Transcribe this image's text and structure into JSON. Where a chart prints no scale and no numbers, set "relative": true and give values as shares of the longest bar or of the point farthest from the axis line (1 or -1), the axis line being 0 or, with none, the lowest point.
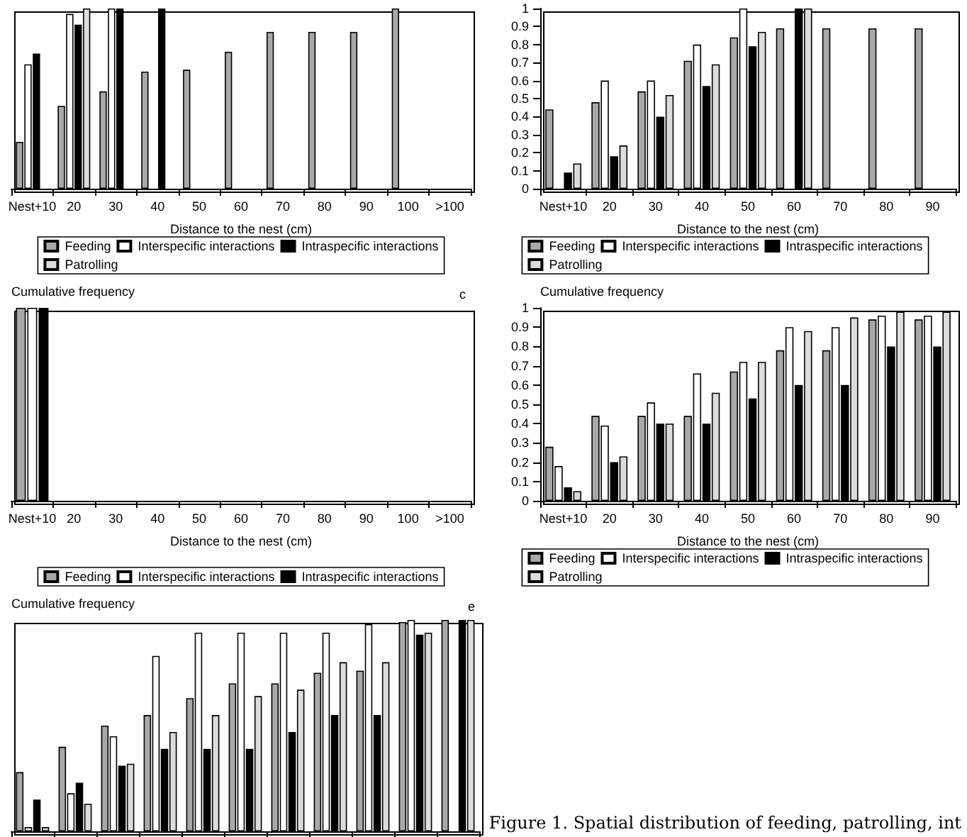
{
  "chart_data": [
    {
      "type": "bar",
      "relative": true,
      "xlabel": "Distance to the nest (cm)",
      "categories": [
        "Nest+10",
        "20",
        "30",
        "40",
        "50",
        "60",
        "70",
        "80",
        "90",
        "100",
        ">100"
      ],
      "legend": "bottom",
      "tick_labels": "x",
      "grid": false,
      "series": [
        {
          "name": "Feeding",
          "color": "#a8a8a8",
          "values": [
            0.26,
            0.46,
            0.54,
            0.65,
            0.66,
            0.76,
            0.87,
            0.87,
            0.87,
            1,
            null
          ]
        },
        {
          "name": "Interspecific interactions",
          "color": "#ffffff",
          "values": [
            0.69,
            0.97,
            1,
            null,
            null,
            null,
            null,
            null,
            null,
            null,
            null
          ]
        },
        {
          "name": "Intraspecific interactions",
          "color": "#000000",
          "values": [
            0.75,
            0.91,
            1,
            1,
            null,
            null,
            null,
            null,
            null,
            null,
            null
          ]
        },
        {
          "name": "Patrolling",
          "color": "#dcdcdc",
          "values": [
            null,
            1,
            null,
            null,
            null,
            null,
            null,
            null,
            null,
            null,
            null
          ]
        }
      ]
    },
    {
      "type": "bar",
      "xlabel": "Distance to the nest (cm)",
      "categories": [
        "Nest+10",
        "20",
        "30",
        "40",
        "50",
        "60",
        "70",
        "80",
        "90"
      ],
      "ylim": [
        0,
        1
      ],
      "yticks": [
        0,
        0.1,
        0.2,
        0.3,
        0.4,
        0.5,
        0.6,
        0.7,
        0.8,
        0.9,
        1
      ],
      "legend": "bottom",
      "grid": false,
      "series": [
        {
          "name": "Feeding",
          "color": "#a8a8a8",
          "values": [
            0.44,
            0.48,
            0.54,
            0.71,
            0.84,
            0.89,
            0.89,
            0.89,
            0.89
          ]
        },
        {
          "name": "Interspecific interactions",
          "color": "#ffffff",
          "values": [
            null,
            0.6,
            0.6,
            0.8,
            1,
            null,
            null,
            null,
            null
          ]
        },
        {
          "name": "Intraspecific interactions",
          "color": "#000000",
          "values": [
            0.09,
            0.18,
            0.4,
            0.57,
            0.79,
            1,
            null,
            null,
            null
          ]
        },
        {
          "name": "Patrolling",
          "color": "#dcdcdc",
          "values": [
            0.14,
            0.24,
            0.52,
            0.69,
            0.87,
            1,
            null,
            null,
            null
          ]
        }
      ]
    },
    {
      "type": "bar",
      "relative": true,
      "ylabel": "Cumulative frequency",
      "xlabel": "Distance to the nest (cm)",
      "annotations": [
        "c"
      ],
      "categories": [
        "Nest+10",
        "20",
        "30",
        "40",
        "50",
        "60",
        "70",
        "80",
        "90",
        "100",
        ">100"
      ],
      "legend": "bottom",
      "tick_labels": "x",
      "grid": false,
      "series": [
        {
          "name": "Feeding",
          "color": "#a8a8a8",
          "values": [
            1,
            null,
            null,
            null,
            null,
            null,
            null,
            null,
            null,
            null,
            null
          ]
        },
        {
          "name": "Interspecific interactions",
          "color": "#ffffff",
          "values": [
            1,
            null,
            null,
            null,
            null,
            null,
            null,
            null,
            null,
            null,
            null
          ]
        },
        {
          "name": "Intraspecific interactions",
          "color": "#000000",
          "values": [
            1,
            null,
            null,
            null,
            null,
            null,
            null,
            null,
            null,
            null,
            null
          ]
        }
      ]
    },
    {
      "type": "bar",
      "ylabel": "Cumulative frequency",
      "xlabel": "Distance to the nest (cm)",
      "categories": [
        "Nest+10",
        "20",
        "30",
        "40",
        "50",
        "60",
        "70",
        "80",
        "90"
      ],
      "ylim": [
        0,
        1
      ],
      "yticks": [
        0,
        0.1,
        0.2,
        0.3,
        0.4,
        0.5,
        0.6,
        0.7,
        0.8,
        0.9,
        1
      ],
      "legend": "bottom",
      "grid": false,
      "series": [
        {
          "name": "Feeding",
          "color": "#a8a8a8",
          "values": [
            0.28,
            0.44,
            0.44,
            0.44,
            0.67,
            0.78,
            0.78,
            0.94,
            0.94
          ]
        },
        {
          "name": "Interspecific interactions",
          "color": "#ffffff",
          "values": [
            0.18,
            0.39,
            0.51,
            0.66,
            0.72,
            0.9,
            0.9,
            0.96,
            0.96
          ]
        },
        {
          "name": "Intraspecific interactions",
          "color": "#000000",
          "values": [
            0.07,
            0.2,
            0.4,
            0.4,
            0.53,
            0.6,
            0.6,
            0.8,
            0.8
          ]
        },
        {
          "name": "Patrolling",
          "color": "#dcdcdc",
          "values": [
            0.05,
            0.23,
            0.4,
            0.56,
            0.72,
            0.88,
            0.95,
            0.98,
            0.98
          ]
        }
      ]
    },
    {
      "type": "bar",
      "relative": true,
      "ylabel": "Cumulative frequency",
      "annotations": [
        "e",
        "Figure 1. Spatial distribution of feeding, patrolling, int"
      ],
      "categories": [
        null,
        null,
        null,
        null,
        null,
        null,
        null,
        null,
        null,
        null,
        null
      ],
      "legend": false,
      "tick_labels": false,
      "grid": false,
      "series": [
        {
          "color": "#a8a8a8",
          "values": [
            0.28,
            0.4,
            0.5,
            0.55,
            0.63,
            0.7,
            0.7,
            0.75,
            0.76,
            0.99,
            1
          ]
        },
        {
          "color": "#ffffff",
          "values": [
            0.02,
            0.18,
            0.45,
            0.83,
            0.94,
            0.94,
            0.94,
            0.94,
            0.98,
            1,
            null
          ]
        },
        {
          "color": "#000000",
          "values": [
            0.15,
            0.23,
            0.31,
            0.39,
            0.39,
            0.39,
            0.47,
            0.55,
            0.55,
            0.93,
            1
          ]
        },
        {
          "color": "#dcdcdc",
          "values": [
            0.02,
            0.13,
            0.32,
            0.47,
            0.55,
            0.64,
            0.67,
            0.8,
            0.8,
            0.94,
            1
          ]
        }
      ]
    }
  ]
}
